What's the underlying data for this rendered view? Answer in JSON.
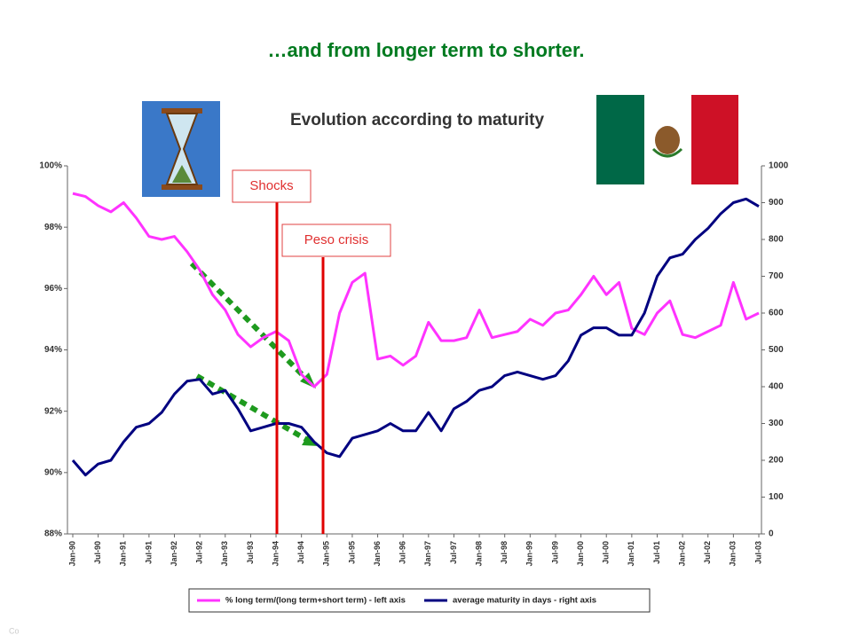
{
  "slide_title": "…and from longer term to shorter.",
  "footer": "Co",
  "chart_data": {
    "type": "line",
    "title": "Evolution according to maturity",
    "categories": [
      "Jan-90",
      null,
      "Jul-90",
      null,
      "Jan-91",
      null,
      "Jul-91",
      null,
      "Jan-92",
      null,
      "Jul-92",
      null,
      "Jan-93",
      null,
      "Jul-93",
      null,
      "Jan-94",
      null,
      "Jul-94",
      null,
      "Jan-95",
      null,
      "Jul-95",
      null,
      "Jan-96",
      null,
      "Jul-96",
      null,
      "Jan-97",
      null,
      "Jul-97",
      null,
      "Jan-98",
      null,
      "Jul-98",
      null,
      "Jan-99",
      null,
      "Jul-99",
      null,
      "Jan-00",
      null,
      "Jul-00",
      null,
      "Jan-01",
      null,
      "Jul-01",
      null,
      "Jan-02",
      null,
      "Jul-02",
      null,
      "Jan-03",
      null,
      "Jul-03"
    ],
    "series": [
      {
        "name": "% long term/(long term+short term) - left axis",
        "color": "#ff33ff",
        "axis": "y",
        "values": [
          99.1,
          99.0,
          98.7,
          98.5,
          98.8,
          98.3,
          97.7,
          97.6,
          97.7,
          97.2,
          96.6,
          95.8,
          95.3,
          94.5,
          94.1,
          94.4,
          94.6,
          94.3,
          93.2,
          92.8,
          93.2,
          95.2,
          96.2,
          96.5,
          93.7,
          93.8,
          93.5,
          93.8,
          94.9,
          94.3,
          94.3,
          94.4,
          95.3,
          94.4,
          94.5,
          94.6,
          95.0,
          94.8,
          95.2,
          95.3,
          95.8,
          96.4,
          95.8,
          96.2,
          94.7,
          94.5,
          95.2,
          95.6,
          94.5,
          94.4,
          94.6,
          94.8,
          96.2,
          95.0,
          95.2
        ]
      },
      {
        "name": "average maturity in days - right axis",
        "color": "#000080",
        "axis": "y2",
        "values": [
          200,
          160,
          190,
          200,
          250,
          290,
          300,
          330,
          380,
          415,
          420,
          380,
          390,
          340,
          280,
          290,
          300,
          300,
          290,
          250,
          220,
          210,
          260,
          270,
          280,
          300,
          280,
          280,
          330,
          280,
          340,
          360,
          390,
          400,
          430,
          440,
          430,
          420,
          430,
          470,
          540,
          560,
          560,
          540,
          540,
          600,
          700,
          750,
          760,
          800,
          830,
          870,
          900,
          910,
          890
        ]
      }
    ],
    "ylim": [
      88,
      100
    ],
    "yticks": [
      {
        "value": 88,
        "label": "88%"
      },
      {
        "value": 90,
        "label": "90%"
      },
      {
        "value": 92,
        "label": "92%"
      },
      {
        "value": 94,
        "label": "94%"
      },
      {
        "value": 96,
        "label": "96%"
      },
      {
        "value": 98,
        "label": "98%"
      },
      {
        "value": 100,
        "label": "100%"
      }
    ],
    "y2lim": [
      0,
      1000
    ],
    "y2ticks": [
      0,
      100,
      200,
      300,
      400,
      500,
      600,
      700,
      800,
      900,
      1000
    ],
    "annotations": [
      "Shocks",
      "Peso crisis"
    ],
    "grid": false,
    "legend": "bottom"
  }
}
